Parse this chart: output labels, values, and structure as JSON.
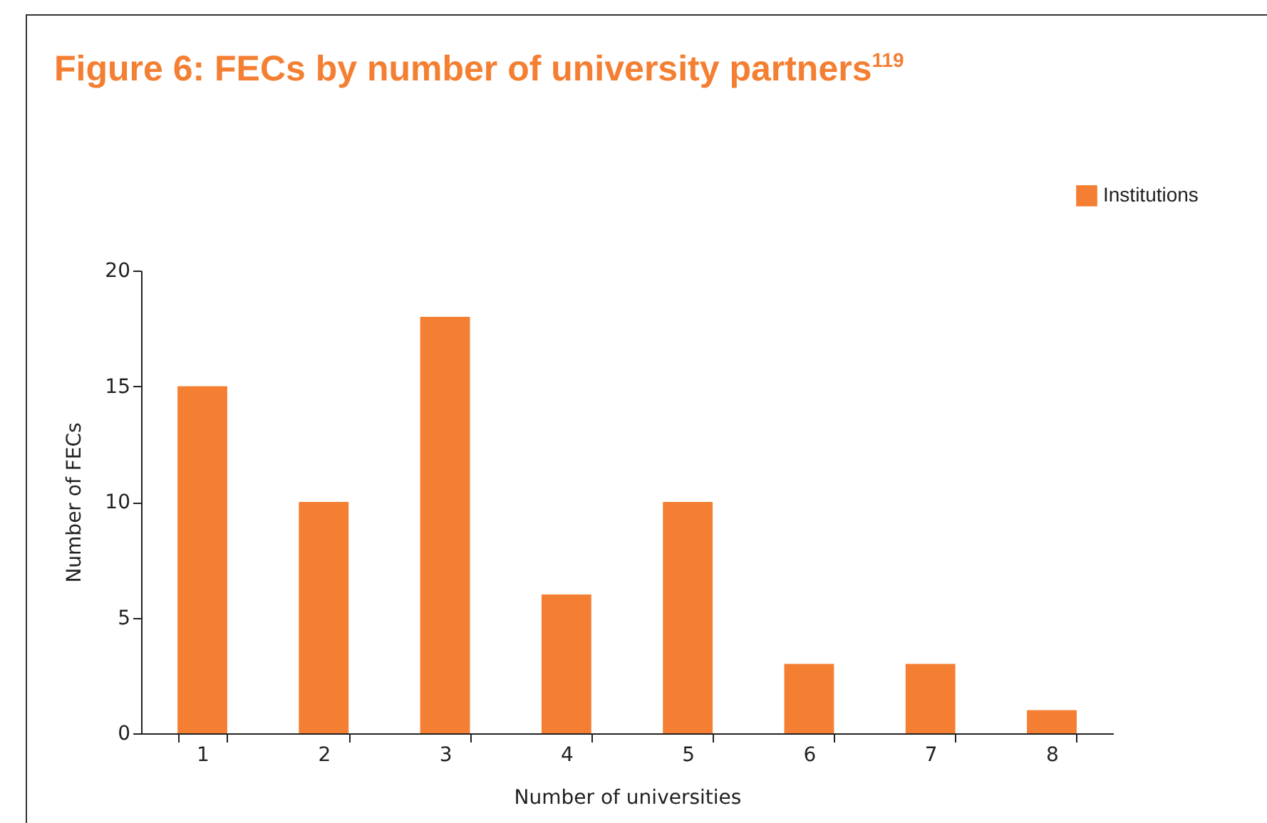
{
  "chart_data": {
    "type": "bar",
    "title": "Figure 6: FECs by number of university partners$^{119}$",
    "xlabel": "Number of universities",
    "ylabel": "Number of FECs",
    "categories": [
      "1",
      "2",
      "3",
      "4",
      "5",
      "6",
      "7",
      "8"
    ],
    "series": [
      {
        "name": "Institutions",
        "color": "#f47f32",
        "values": [
          15,
          10,
          18,
          6,
          10,
          3,
          3,
          1
        ]
      }
    ],
    "ylim": [
      0,
      20
    ],
    "yticks": [
      0,
      5,
      10,
      15,
      20
    ],
    "legend": "top right"
  }
}
